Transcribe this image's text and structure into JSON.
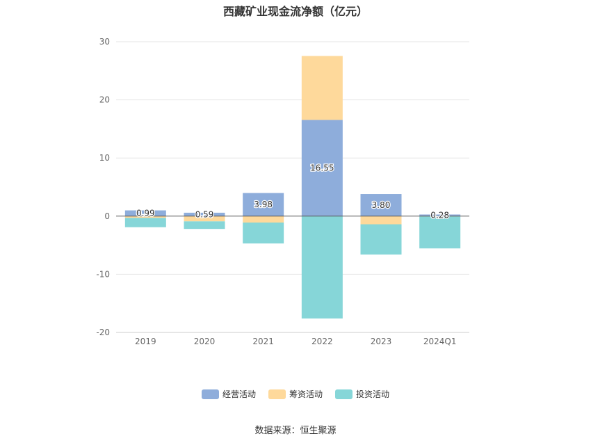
{
  "chart_data": {
    "type": "bar",
    "stacked": true,
    "title": "西藏矿业现金流净额（亿元）",
    "categories": [
      "2019",
      "2020",
      "2021",
      "2022",
      "2023",
      "2024Q1"
    ],
    "ylim": [
      -20,
      30
    ],
    "yticks": [
      30,
      20,
      10,
      0,
      -10,
      -20
    ],
    "grid": true,
    "legend_position": "bottom",
    "series": [
      {
        "name": "经营活动",
        "color": "#8eaddb",
        "values": [
          0.99,
          0.59,
          3.98,
          16.55,
          3.8,
          0.28
        ],
        "labels": [
          "0.99",
          "0.59",
          "3.98",
          "16.55",
          "3.80",
          "0.28"
        ]
      },
      {
        "name": "筹资活动",
        "color": "#fed99b",
        "values": [
          -0.3,
          -0.9,
          -1.1,
          11.0,
          -1.4,
          -0.05
        ]
      },
      {
        "name": "投资活动",
        "color": "#86d6d8",
        "values": [
          -1.6,
          -1.3,
          -3.6,
          -17.6,
          -5.2,
          -5.5
        ]
      }
    ],
    "source": "数据来源：恒生聚源"
  }
}
